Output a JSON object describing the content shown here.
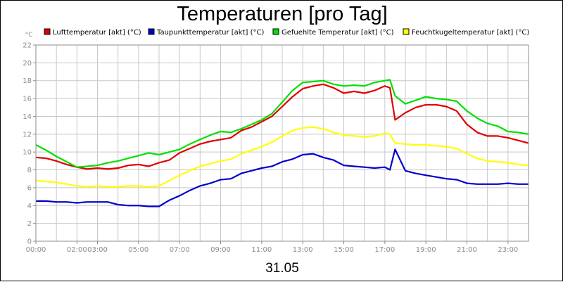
{
  "chart_data": {
    "type": "line",
    "title": "Temperaturen [pro Tag]",
    "y_unit": "°C",
    "date_label": "31.05",
    "ylim": [
      0,
      22
    ],
    "y_ticks": [
      0,
      2,
      4,
      6,
      8,
      10,
      12,
      14,
      16,
      18,
      20,
      22
    ],
    "xlim": [
      "00:00",
      "24:00"
    ],
    "x_ticks": [
      {
        "label": "00:00",
        "t": "00:00"
      },
      {
        "label": "02:00",
        "t": "02:00"
      },
      {
        "label": "03:00",
        "t": "03:00"
      },
      {
        "label": "05:00",
        "t": "05:00"
      },
      {
        "label": "07:00",
        "t": "07:00"
      },
      {
        "label": "09:00",
        "t": "09:00"
      },
      {
        "label": "11:00",
        "t": "11:00"
      },
      {
        "label": "13:00",
        "t": "13:00"
      },
      {
        "label": "15:00",
        "t": "15:00"
      },
      {
        "label": "17:00",
        "t": "17:00"
      },
      {
        "label": "19:00",
        "t": "19:00"
      },
      {
        "label": "21:00",
        "t": "21:00"
      },
      {
        "label": "23:00",
        "t": "23:00"
      }
    ],
    "grid": true,
    "legend_position": "top",
    "series": [
      {
        "name": "Lufttemperatur [akt] (°C)",
        "color": "#e00000",
        "points": [
          [
            "00:00",
            9.4
          ],
          [
            "00:30",
            9.3
          ],
          [
            "01:00",
            9.0
          ],
          [
            "01:30",
            8.6
          ],
          [
            "02:00",
            8.3
          ],
          [
            "02:30",
            8.1
          ],
          [
            "03:00",
            8.2
          ],
          [
            "03:30",
            8.1
          ],
          [
            "04:00",
            8.2
          ],
          [
            "04:30",
            8.5
          ],
          [
            "05:00",
            8.6
          ],
          [
            "05:30",
            8.4
          ],
          [
            "06:00",
            8.8
          ],
          [
            "06:30",
            9.1
          ],
          [
            "07:00",
            9.9
          ],
          [
            "07:30",
            10.4
          ],
          [
            "08:00",
            10.9
          ],
          [
            "08:30",
            11.2
          ],
          [
            "09:00",
            11.4
          ],
          [
            "09:30",
            11.6
          ],
          [
            "10:00",
            12.4
          ],
          [
            "10:30",
            12.8
          ],
          [
            "11:00",
            13.4
          ],
          [
            "11:30",
            14.0
          ],
          [
            "12:00",
            15.1
          ],
          [
            "12:30",
            16.2
          ],
          [
            "13:00",
            17.1
          ],
          [
            "13:30",
            17.4
          ],
          [
            "14:00",
            17.6
          ],
          [
            "14:30",
            17.2
          ],
          [
            "15:00",
            16.6
          ],
          [
            "15:30",
            16.8
          ],
          [
            "16:00",
            16.6
          ],
          [
            "16:30",
            16.9
          ],
          [
            "17:00",
            17.4
          ],
          [
            "17:15",
            17.2
          ],
          [
            "17:30",
            13.6
          ],
          [
            "18:00",
            14.4
          ],
          [
            "18:30",
            15.0
          ],
          [
            "19:00",
            15.3
          ],
          [
            "19:30",
            15.3
          ],
          [
            "20:00",
            15.1
          ],
          [
            "20:30",
            14.6
          ],
          [
            "21:00",
            13.1
          ],
          [
            "21:30",
            12.2
          ],
          [
            "22:00",
            11.8
          ],
          [
            "22:30",
            11.8
          ],
          [
            "23:00",
            11.6
          ],
          [
            "23:30",
            11.3
          ],
          [
            "24:00",
            11.0
          ]
        ]
      },
      {
        "name": "Taupunkttemperatur [akt] (°C)",
        "color": "#0000d0",
        "points": [
          [
            "00:00",
            4.5
          ],
          [
            "00:30",
            4.5
          ],
          [
            "01:00",
            4.4
          ],
          [
            "01:30",
            4.4
          ],
          [
            "02:00",
            4.3
          ],
          [
            "02:30",
            4.4
          ],
          [
            "03:00",
            4.4
          ],
          [
            "03:30",
            4.4
          ],
          [
            "04:00",
            4.1
          ],
          [
            "04:30",
            4.0
          ],
          [
            "05:00",
            4.0
          ],
          [
            "05:30",
            3.9
          ],
          [
            "06:00",
            3.9
          ],
          [
            "06:30",
            4.6
          ],
          [
            "07:00",
            5.1
          ],
          [
            "07:30",
            5.7
          ],
          [
            "08:00",
            6.2
          ],
          [
            "08:30",
            6.5
          ],
          [
            "09:00",
            6.9
          ],
          [
            "09:30",
            7.0
          ],
          [
            "10:00",
            7.6
          ],
          [
            "10:30",
            7.9
          ],
          [
            "11:00",
            8.2
          ],
          [
            "11:30",
            8.4
          ],
          [
            "12:00",
            8.9
          ],
          [
            "12:30",
            9.2
          ],
          [
            "13:00",
            9.7
          ],
          [
            "13:30",
            9.8
          ],
          [
            "14:00",
            9.4
          ],
          [
            "14:30",
            9.1
          ],
          [
            "15:00",
            8.5
          ],
          [
            "15:30",
            8.4
          ],
          [
            "16:00",
            8.3
          ],
          [
            "16:30",
            8.2
          ],
          [
            "17:00",
            8.3
          ],
          [
            "17:15",
            8.0
          ],
          [
            "17:30",
            10.3
          ],
          [
            "18:00",
            7.9
          ],
          [
            "18:30",
            7.6
          ],
          [
            "19:00",
            7.4
          ],
          [
            "19:30",
            7.2
          ],
          [
            "20:00",
            7.0
          ],
          [
            "20:30",
            6.9
          ],
          [
            "21:00",
            6.5
          ],
          [
            "21:30",
            6.4
          ],
          [
            "22:00",
            6.4
          ],
          [
            "22:30",
            6.4
          ],
          [
            "23:00",
            6.5
          ],
          [
            "23:30",
            6.4
          ],
          [
            "24:00",
            6.4
          ]
        ]
      },
      {
        "name": "Gefuehlte Temperatur [akt] (°C)",
        "color": "#00e000",
        "points": [
          [
            "00:00",
            10.8
          ],
          [
            "00:30",
            10.2
          ],
          [
            "01:00",
            9.5
          ],
          [
            "01:30",
            8.9
          ],
          [
            "02:00",
            8.3
          ],
          [
            "02:30",
            8.4
          ],
          [
            "03:00",
            8.5
          ],
          [
            "03:30",
            8.8
          ],
          [
            "04:00",
            9.0
          ],
          [
            "04:30",
            9.3
          ],
          [
            "05:00",
            9.6
          ],
          [
            "05:30",
            9.9
          ],
          [
            "06:00",
            9.7
          ],
          [
            "06:30",
            10.0
          ],
          [
            "07:00",
            10.3
          ],
          [
            "07:30",
            10.9
          ],
          [
            "08:00",
            11.4
          ],
          [
            "08:30",
            11.9
          ],
          [
            "09:00",
            12.3
          ],
          [
            "09:30",
            12.2
          ],
          [
            "10:00",
            12.6
          ],
          [
            "10:30",
            13.1
          ],
          [
            "11:00",
            13.6
          ],
          [
            "11:30",
            14.3
          ],
          [
            "12:00",
            15.6
          ],
          [
            "12:30",
            16.9
          ],
          [
            "13:00",
            17.8
          ],
          [
            "13:30",
            17.9
          ],
          [
            "14:00",
            18.0
          ],
          [
            "14:30",
            17.6
          ],
          [
            "15:00",
            17.4
          ],
          [
            "15:30",
            17.5
          ],
          [
            "16:00",
            17.4
          ],
          [
            "16:30",
            17.8
          ],
          [
            "17:00",
            18.0
          ],
          [
            "17:15",
            18.1
          ],
          [
            "17:30",
            16.3
          ],
          [
            "18:00",
            15.4
          ],
          [
            "18:30",
            15.8
          ],
          [
            "19:00",
            16.2
          ],
          [
            "19:30",
            16.0
          ],
          [
            "20:00",
            15.9
          ],
          [
            "20:30",
            15.7
          ],
          [
            "21:00",
            14.6
          ],
          [
            "21:30",
            13.8
          ],
          [
            "22:00",
            13.2
          ],
          [
            "22:30",
            12.9
          ],
          [
            "23:00",
            12.3
          ],
          [
            "23:30",
            12.2
          ],
          [
            "24:00",
            12.0
          ]
        ]
      },
      {
        "name": "Feuchtkugeltemperatur [akt] (°C)",
        "color": "#ffff00",
        "points": [
          [
            "00:00",
            6.8
          ],
          [
            "00:30",
            6.7
          ],
          [
            "01:00",
            6.6
          ],
          [
            "01:30",
            6.4
          ],
          [
            "02:00",
            6.2
          ],
          [
            "02:30",
            6.1
          ],
          [
            "03:00",
            6.2
          ],
          [
            "03:30",
            6.1
          ],
          [
            "04:00",
            6.1
          ],
          [
            "04:30",
            6.2
          ],
          [
            "05:00",
            6.2
          ],
          [
            "05:30",
            6.1
          ],
          [
            "06:00",
            6.2
          ],
          [
            "06:30",
            6.8
          ],
          [
            "07:00",
            7.4
          ],
          [
            "07:30",
            7.9
          ],
          [
            "08:00",
            8.4
          ],
          [
            "08:30",
            8.7
          ],
          [
            "09:00",
            9.0
          ],
          [
            "09:30",
            9.2
          ],
          [
            "10:00",
            9.8
          ],
          [
            "10:30",
            10.2
          ],
          [
            "11:00",
            10.6
          ],
          [
            "11:30",
            11.1
          ],
          [
            "12:00",
            11.8
          ],
          [
            "12:30",
            12.4
          ],
          [
            "13:00",
            12.7
          ],
          [
            "13:30",
            12.8
          ],
          [
            "14:00",
            12.6
          ],
          [
            "14:30",
            12.2
          ],
          [
            "15:00",
            11.9
          ],
          [
            "15:30",
            11.8
          ],
          [
            "16:00",
            11.7
          ],
          [
            "16:30",
            11.8
          ],
          [
            "17:00",
            12.1
          ],
          [
            "17:15",
            12.0
          ],
          [
            "17:30",
            11.0
          ],
          [
            "18:00",
            10.9
          ],
          [
            "18:30",
            10.8
          ],
          [
            "19:00",
            10.8
          ],
          [
            "19:30",
            10.7
          ],
          [
            "20:00",
            10.6
          ],
          [
            "20:30",
            10.4
          ],
          [
            "21:00",
            9.8
          ],
          [
            "21:30",
            9.3
          ],
          [
            "22:00",
            9.0
          ],
          [
            "22:30",
            8.9
          ],
          [
            "23:00",
            8.8
          ],
          [
            "23:30",
            8.6
          ],
          [
            "24:00",
            8.5
          ]
        ]
      }
    ]
  }
}
